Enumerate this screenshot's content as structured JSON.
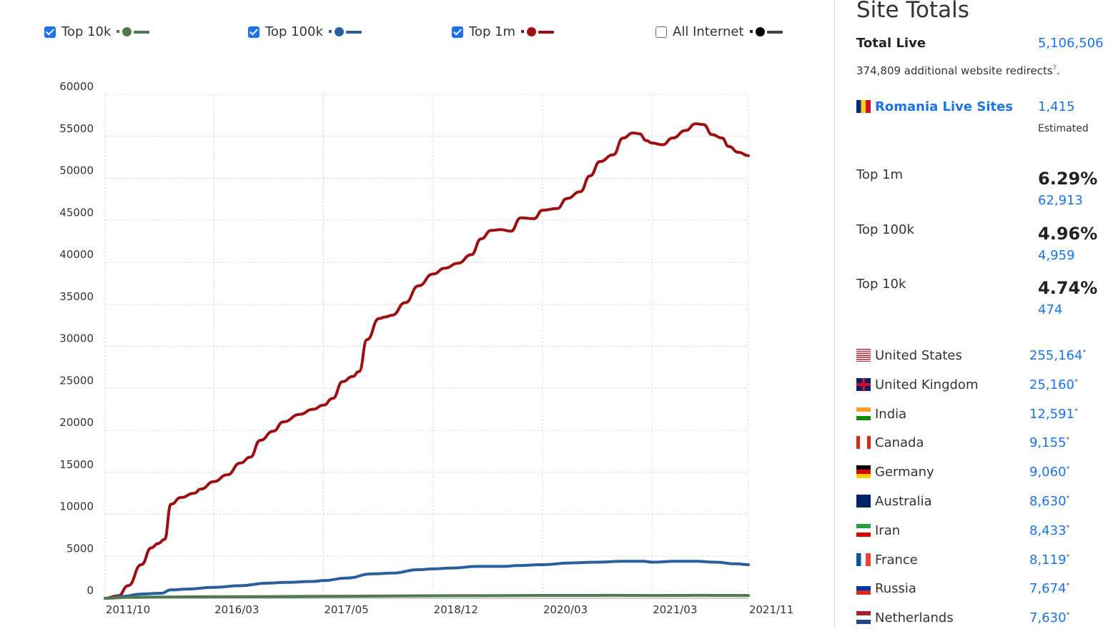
{
  "legend": [
    {
      "label": "Top 10k",
      "checked": true,
      "color": "#4f7a4f"
    },
    {
      "label": "Top 100k",
      "checked": true,
      "color": "#2a5f9e"
    },
    {
      "label": "Top 1m",
      "checked": true,
      "color": "#9b1010"
    },
    {
      "label": "All Internet",
      "checked": false,
      "color": "#222222"
    }
  ],
  "chart_data": {
    "type": "line",
    "ylim": [
      0,
      60000
    ],
    "yticks": [
      "0",
      "5000",
      "10000",
      "15000",
      "20000",
      "25000",
      "30000",
      "35000",
      "40000",
      "45000",
      "50000",
      "55000",
      "60000"
    ],
    "xlim": [
      2011.75,
      2021.5
    ],
    "xticks": [
      {
        "label": "2011/10",
        "pos": 2011.75
      },
      {
        "label": "2016/03",
        "pos": 2013.4
      },
      {
        "label": "2017/05",
        "pos": 2015.06
      },
      {
        "label": "2018/12",
        "pos": 2016.72
      },
      {
        "label": "2020/03",
        "pos": 2018.38
      },
      {
        "label": "2021/03",
        "pos": 2020.04
      },
      {
        "label": "2021/11",
        "pos": 2021.5
      }
    ],
    "grid": true,
    "series": [
      {
        "name": "Top 1m",
        "color": "#9b1010",
        "points": [
          [
            2011.75,
            0
          ],
          [
            2011.95,
            300
          ],
          [
            2012.1,
            1500
          ],
          [
            2012.3,
            4000
          ],
          [
            2012.45,
            6000
          ],
          [
            2012.55,
            6500
          ],
          [
            2012.65,
            7000
          ],
          [
            2012.75,
            11200
          ],
          [
            2012.9,
            12000
          ],
          [
            2013.1,
            12500
          ],
          [
            2013.2,
            13000
          ],
          [
            2013.4,
            13900
          ],
          [
            2013.6,
            14700
          ],
          [
            2013.8,
            16100
          ],
          [
            2013.95,
            16800
          ],
          [
            2014.1,
            18800
          ],
          [
            2014.3,
            19900
          ],
          [
            2014.45,
            21000
          ],
          [
            2014.7,
            21900
          ],
          [
            2014.9,
            22500
          ],
          [
            2015.06,
            23000
          ],
          [
            2015.2,
            23800
          ],
          [
            2015.35,
            25800
          ],
          [
            2015.5,
            26400
          ],
          [
            2015.6,
            27000
          ],
          [
            2015.72,
            30800
          ],
          [
            2015.9,
            33300
          ],
          [
            2016.0,
            33500
          ],
          [
            2016.1,
            33700
          ],
          [
            2016.3,
            35200
          ],
          [
            2016.5,
            37200
          ],
          [
            2016.72,
            38600
          ],
          [
            2016.9,
            39300
          ],
          [
            2017.1,
            39900
          ],
          [
            2017.3,
            40900
          ],
          [
            2017.45,
            42800
          ],
          [
            2017.6,
            43800
          ],
          [
            2017.75,
            43900
          ],
          [
            2017.9,
            43700
          ],
          [
            2018.05,
            45300
          ],
          [
            2018.25,
            45200
          ],
          [
            2018.38,
            46200
          ],
          [
            2018.6,
            46400
          ],
          [
            2018.75,
            47600
          ],
          [
            2018.95,
            48400
          ],
          [
            2019.1,
            50300
          ],
          [
            2019.25,
            52000
          ],
          [
            2019.45,
            52800
          ],
          [
            2019.6,
            54800
          ],
          [
            2019.75,
            55400
          ],
          [
            2019.85,
            55300
          ],
          [
            2019.95,
            54500
          ],
          [
            2020.04,
            54200
          ],
          [
            2020.2,
            54000
          ],
          [
            2020.35,
            54800
          ],
          [
            2020.55,
            55700
          ],
          [
            2020.7,
            56500
          ],
          [
            2020.82,
            56400
          ],
          [
            2020.95,
            55200
          ],
          [
            2021.1,
            54800
          ],
          [
            2021.2,
            53800
          ],
          [
            2021.35,
            53100
          ],
          [
            2021.5,
            52700
          ]
        ]
      },
      {
        "name": "Top 100k",
        "color": "#2a5f9e",
        "points": [
          [
            2011.75,
            0
          ],
          [
            2012.0,
            200
          ],
          [
            2012.3,
            500
          ],
          [
            2012.6,
            600
          ],
          [
            2012.75,
            1000
          ],
          [
            2013.0,
            1100
          ],
          [
            2013.4,
            1300
          ],
          [
            2013.8,
            1500
          ],
          [
            2014.2,
            1800
          ],
          [
            2014.5,
            1900
          ],
          [
            2014.9,
            2000
          ],
          [
            2015.06,
            2100
          ],
          [
            2015.4,
            2400
          ],
          [
            2015.8,
            2900
          ],
          [
            2016.1,
            3000
          ],
          [
            2016.5,
            3400
          ],
          [
            2016.72,
            3500
          ],
          [
            2017.0,
            3600
          ],
          [
            2017.4,
            3800
          ],
          [
            2017.8,
            3800
          ],
          [
            2018.0,
            3900
          ],
          [
            2018.38,
            4000
          ],
          [
            2018.8,
            4200
          ],
          [
            2019.2,
            4300
          ],
          [
            2019.6,
            4400
          ],
          [
            2019.9,
            4400
          ],
          [
            2020.04,
            4300
          ],
          [
            2020.4,
            4400
          ],
          [
            2020.7,
            4400
          ],
          [
            2021.0,
            4300
          ],
          [
            2021.3,
            4100
          ],
          [
            2021.5,
            4000
          ]
        ]
      },
      {
        "name": "Top 10k",
        "color": "#4f7a4f",
        "points": [
          [
            2011.75,
            0
          ],
          [
            2012.1,
            100
          ],
          [
            2012.6,
            150
          ],
          [
            2013.4,
            180
          ],
          [
            2014.5,
            210
          ],
          [
            2015.5,
            250
          ],
          [
            2016.72,
            300
          ],
          [
            2017.8,
            320
          ],
          [
            2018.38,
            340
          ],
          [
            2019.5,
            350
          ],
          [
            2020.04,
            330
          ],
          [
            2020.8,
            350
          ],
          [
            2021.5,
            330
          ]
        ]
      }
    ]
  },
  "side": {
    "title": "Site Totals",
    "total_live_label": "Total Live",
    "total_live_value": "5,106,506",
    "redirects_text": "374,809 additional website redirects",
    "redirects_sup": "?",
    "redirects_end": ".",
    "country_label": "Romania Live Sites",
    "country_value": "1,415",
    "estimated": "Estimated",
    "tops": [
      {
        "label": "Top 1m",
        "pct": "6.29%",
        "count": "62,913"
      },
      {
        "label": "Top 100k",
        "pct": "4.96%",
        "count": "4,959"
      },
      {
        "label": "Top 10k",
        "pct": "4.74%",
        "count": "474"
      }
    ],
    "countries": [
      {
        "name": "United States",
        "value": "255,164",
        "flag": "us"
      },
      {
        "name": "United Kingdom",
        "value": "25,160",
        "flag": "uk"
      },
      {
        "name": "India",
        "value": "12,591",
        "flag": "in"
      },
      {
        "name": "Canada",
        "value": "9,155",
        "flag": "ca"
      },
      {
        "name": "Germany",
        "value": "9,060",
        "flag": "de"
      },
      {
        "name": "Australia",
        "value": "8,630",
        "flag": "au"
      },
      {
        "name": "Iran",
        "value": "8,433",
        "flag": "ir"
      },
      {
        "name": "France",
        "value": "8,119",
        "flag": "fr"
      },
      {
        "name": "Russia",
        "value": "7,674",
        "flag": "ru"
      },
      {
        "name": "Netherlands",
        "value": "7,630",
        "flag": "nl"
      }
    ],
    "asterisk": "*"
  }
}
